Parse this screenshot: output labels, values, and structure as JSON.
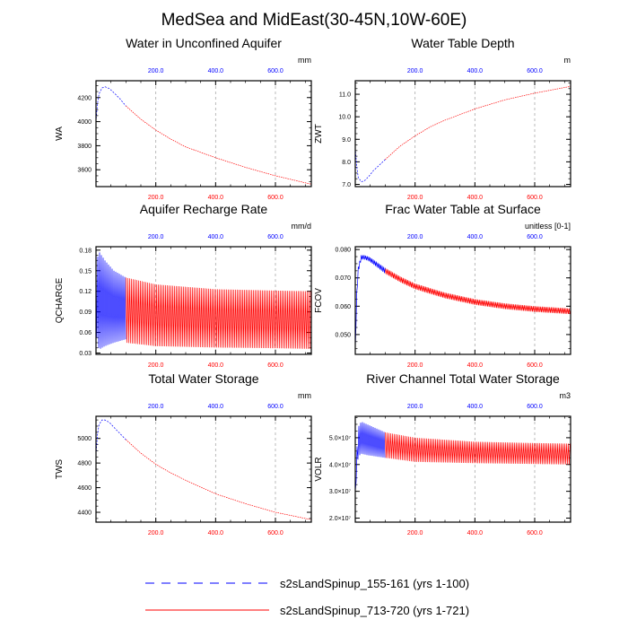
{
  "title": "MedSea and MidEast(30-45N,10W-60E)",
  "colors": {
    "series_a": "#0000ff",
    "series_b": "#ff0000",
    "axis": "#000000",
    "grid": "#aaaaaa"
  },
  "legend": [
    {
      "label": "s2sLandSpinup_155-161 (yrs 1-100)",
      "style": "dashed",
      "color": "#0000ff"
    },
    {
      "label": "s2sLandSpinup_713-720 (yrs 1-721)",
      "style": "solid",
      "color": "#ff0000"
    }
  ],
  "chart_data": [
    {
      "type": "line",
      "title": "Water in Unconfined Aquifer",
      "ylabel": "WA",
      "units": "mm",
      "xlim": [
        0,
        720
      ],
      "top_ticks": [
        "200.0",
        "400.0",
        "600.0"
      ],
      "bottom_ticks": [
        "200.0",
        "400.0",
        "600.0"
      ],
      "ylim": [
        3460,
        4340
      ],
      "yticks": [
        "3600",
        "3800",
        "4000",
        "4200"
      ],
      "ytick_values": [
        3600,
        3800,
        4000,
        4200
      ],
      "oscillation": "none",
      "series": [
        {
          "name": "s2sLandSpinup_155-161 (yrs 1-100)",
          "x": [
            0,
            5,
            10,
            20,
            30,
            45,
            60,
            80,
            100
          ],
          "y": [
            4000,
            4150,
            4230,
            4280,
            4290,
            4275,
            4240,
            4190,
            4130
          ]
        },
        {
          "name": "s2sLandSpinup_713-720 (yrs 1-721)",
          "x": [
            100,
            150,
            200,
            250,
            300,
            400,
            500,
            600,
            720
          ],
          "y": [
            4130,
            4020,
            3930,
            3855,
            3790,
            3700,
            3620,
            3550,
            3480
          ]
        }
      ]
    },
    {
      "type": "line",
      "title": "Water Table Depth",
      "ylabel": "ZWT",
      "units": "m",
      "xlim": [
        0,
        720
      ],
      "top_ticks": [
        "200.0",
        "400.0",
        "600.0"
      ],
      "bottom_ticks": [
        "200.0",
        "400.0",
        "600.0"
      ],
      "ylim": [
        6.9,
        11.6
      ],
      "yticks": [
        "7.0",
        "8.0",
        "9.0",
        "10.0",
        "11.0"
      ],
      "ytick_values": [
        7,
        8,
        9,
        10,
        11
      ],
      "oscillation": "none",
      "series": [
        {
          "name": "s2sLandSpinup_155-161 (yrs 1-100)",
          "x": [
            0,
            5,
            10,
            20,
            30,
            45,
            60,
            80,
            100
          ],
          "y": [
            8.6,
            7.8,
            7.3,
            7.12,
            7.15,
            7.35,
            7.6,
            7.85,
            8.1
          ]
        },
        {
          "name": "s2sLandSpinup_713-720 (yrs 1-721)",
          "x": [
            100,
            150,
            200,
            250,
            300,
            400,
            500,
            600,
            720
          ],
          "y": [
            8.1,
            8.7,
            9.15,
            9.55,
            9.85,
            10.35,
            10.75,
            11.05,
            11.35
          ]
        }
      ]
    },
    {
      "type": "line",
      "title": "Aquifer Recharge Rate",
      "ylabel": "QCHARGE",
      "units": "mm/d",
      "xlim": [
        0,
        720
      ],
      "top_ticks": [
        "200.0",
        "400.0",
        "600.0"
      ],
      "bottom_ticks": [
        "200.0",
        "400.0",
        "600.0"
      ],
      "ylim": [
        0.028,
        0.185
      ],
      "yticks": [
        "0.03",
        "0.06",
        "0.09",
        "0.12",
        "0.15",
        "0.18"
      ],
      "ytick_values": [
        0.03,
        0.06,
        0.09,
        0.12,
        0.15,
        0.18
      ],
      "oscillation": "strong",
      "series": [
        {
          "name": "s2sLandSpinup_155-161 (yrs 1-100)",
          "x": [
            0,
            10,
            30,
            60,
            100
          ],
          "y_max": [
            0.16,
            0.178,
            0.165,
            0.15,
            0.14
          ],
          "y_min": [
            0.06,
            0.035,
            0.04,
            0.045,
            0.05
          ]
        },
        {
          "name": "s2sLandSpinup_713-720 (yrs 1-721)",
          "x": [
            100,
            200,
            400,
            600,
            720
          ],
          "y_max": [
            0.14,
            0.13,
            0.123,
            0.121,
            0.12
          ],
          "y_min": [
            0.045,
            0.04,
            0.038,
            0.037,
            0.036
          ]
        }
      ]
    },
    {
      "type": "line",
      "title": "Frac Water Table at Surface",
      "ylabel": "FCOV",
      "units": "unitless [0-1]",
      "xlim": [
        0,
        720
      ],
      "top_ticks": [
        "200.0",
        "400.0",
        "600.0"
      ],
      "bottom_ticks": [
        "200.0",
        "400.0",
        "600.0"
      ],
      "ylim": [
        0.043,
        0.081
      ],
      "yticks": [
        "0.050",
        "0.060",
        "0.070",
        "0.080"
      ],
      "ytick_values": [
        0.05,
        0.06,
        0.07,
        0.08
      ],
      "oscillation": "mild",
      "series": [
        {
          "name": "s2sLandSpinup_155-161 (yrs 1-100)",
          "x": [
            0,
            5,
            10,
            20,
            30,
            45,
            60,
            80,
            100
          ],
          "y_max": [
            0.045,
            0.065,
            0.074,
            0.078,
            0.078,
            0.0775,
            0.0765,
            0.075,
            0.0735
          ],
          "y_min": [
            0.044,
            0.063,
            0.072,
            0.0765,
            0.0765,
            0.076,
            0.0748,
            0.0732,
            0.0715
          ]
        },
        {
          "name": "s2sLandSpinup_713-720 (yrs 1-721)",
          "x": [
            100,
            150,
            200,
            300,
            400,
            500,
            600,
            720
          ],
          "y_max": [
            0.0735,
            0.0705,
            0.068,
            0.0648,
            0.0625,
            0.061,
            0.06,
            0.0592
          ],
          "y_min": [
            0.0715,
            0.0685,
            0.066,
            0.0628,
            0.0605,
            0.059,
            0.058,
            0.0572
          ]
        }
      ]
    },
    {
      "type": "line",
      "title": "Total Water Storage",
      "ylabel": "TWS",
      "units": "mm",
      "xlim": [
        0,
        720
      ],
      "top_ticks": [
        "200.0",
        "400.0",
        "600.0"
      ],
      "bottom_ticks": [
        "200.0",
        "400.0",
        "600.0"
      ],
      "ylim": [
        4320,
        5180
      ],
      "yticks": [
        "4400",
        "4600",
        "4800",
        "5000"
      ],
      "ytick_values": [
        4400,
        4600,
        4800,
        5000
      ],
      "oscillation": "none",
      "series": [
        {
          "name": "s2sLandSpinup_155-161 (yrs 1-100)",
          "x": [
            0,
            5,
            10,
            20,
            30,
            45,
            60,
            80,
            100
          ],
          "y": [
            4870,
            5030,
            5110,
            5150,
            5150,
            5130,
            5090,
            5040,
            4990
          ]
        },
        {
          "name": "s2sLandSpinup_713-720 (yrs 1-721)",
          "x": [
            100,
            150,
            200,
            250,
            300,
            400,
            500,
            600,
            720
          ],
          "y": [
            4990,
            4880,
            4790,
            4720,
            4660,
            4550,
            4470,
            4400,
            4340
          ]
        }
      ]
    },
    {
      "type": "line",
      "title": "River Channel Total Water Storage",
      "ylabel": "VOLR",
      "units": "m3",
      "xlim": [
        0,
        720
      ],
      "top_ticks": [
        "200.0",
        "400.0",
        "600.0"
      ],
      "bottom_ticks": [
        "200.0",
        "400.0",
        "600.0"
      ],
      "ylim": [
        18500000.0,
        58000000.0
      ],
      "yticks": [
        "2.0×10⁷",
        "3.0×10⁷",
        "4.0×10⁷",
        "5.0×10⁷"
      ],
      "ytick_values": [
        20000000.0,
        30000000.0,
        40000000.0,
        50000000.0
      ],
      "oscillation": "strong",
      "series": [
        {
          "name": "s2sLandSpinup_155-161 (yrs 1-100)",
          "x": [
            0,
            5,
            10,
            20,
            40,
            70,
            100
          ],
          "y_max": [
            30000000.0,
            45000000.0,
            54000000.0,
            56000000.0,
            55000000.0,
            53500000.0,
            52000000.0
          ],
          "y_min": [
            29000000.0,
            37000000.0,
            43000000.0,
            44000000.0,
            43500000.0,
            43000000.0,
            42500000.0
          ]
        },
        {
          "name": "s2sLandSpinup_713-720 (yrs 1-721)",
          "x": [
            100,
            200,
            400,
            600,
            720
          ],
          "y_max": [
            52000000.0,
            50000000.0,
            48500000.0,
            48000000.0,
            47800000.0
          ],
          "y_min": [
            42500000.0,
            41000000.0,
            40500000.0,
            40200000.0,
            40000000.0
          ]
        }
      ]
    }
  ]
}
